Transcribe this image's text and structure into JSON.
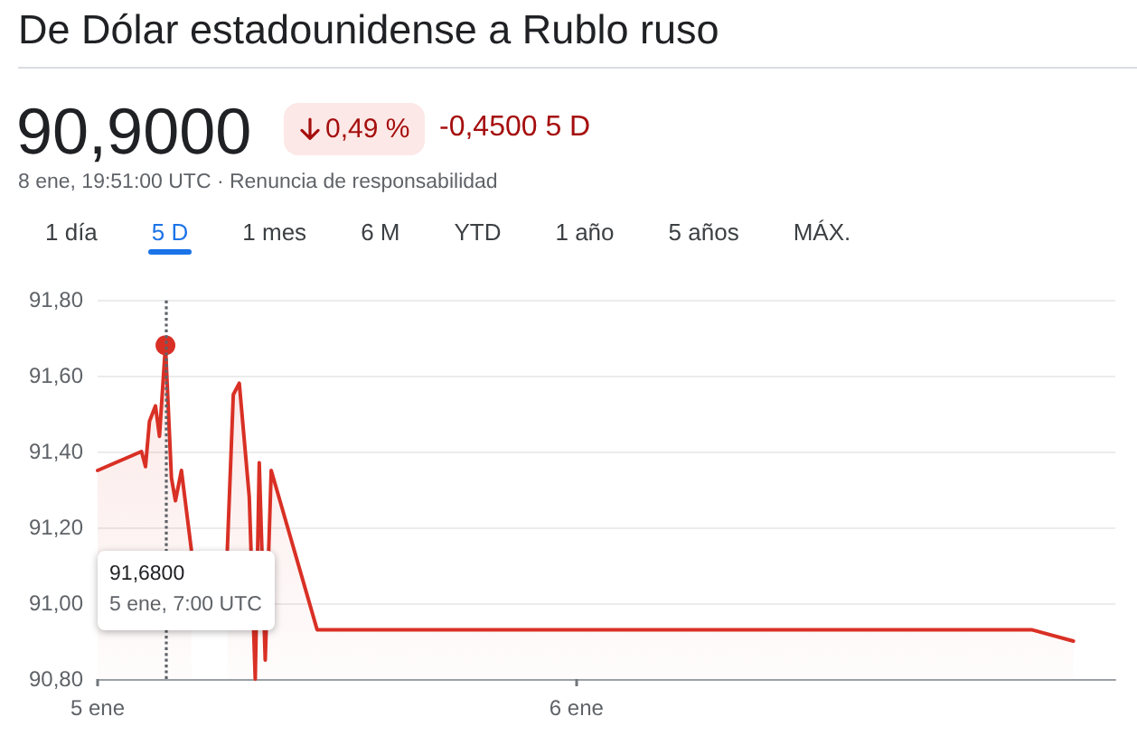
{
  "chart_data": {
    "type": "area",
    "title": "De Dólar estadounidense a Rublo ruso",
    "subtitle": "8 ene, 19:51:00 UTC · Renuncia de responsabilidad",
    "annotations": [
      "90,9000",
      "0,49 %",
      "-0,4500 5 D",
      "1 día",
      "5 D",
      "1 mes",
      "6 M",
      "YTD",
      "1 año",
      "5 años",
      "MÁX.",
      "91,6800\n5 ene, 7:00 UTC"
    ],
    "x": [
      "--01-05T00:00",
      "--01-05T02:12",
      "--01-05T02:24",
      "--01-05T02:36",
      "--01-05T02:54",
      "--01-05T03:06",
      "--01-05T03:24",
      "--01-05T03:42",
      "--01-05T03:54",
      "--01-05T04:12",
      "--01-05T04:42",
      "--01-05T05:36",
      "--01-05T06:30",
      "--01-05T06:48",
      "--01-05T07:06",
      "--01-05T07:36",
      "--01-05T07:54",
      "--01-05T08:06",
      "--01-05T08:24",
      "--01-05T08:42",
      "--01-05T11:00",
      "--01-06T22:48",
      "--01-07T00:54"
    ],
    "series": [
      {
        "color": "#d93025",
        "values": [
          91.35,
          91.4,
          91.36,
          91.48,
          91.52,
          91.44,
          91.68,
          91.33,
          91.27,
          91.35,
          91.14,
          null,
          91.14,
          91.55,
          91.58,
          91.28,
          90.8,
          91.37,
          90.85,
          91.35,
          90.93,
          90.93,
          90.9
        ]
      },
      {
        "type": "scatter",
        "color": "#d93025",
        "marker": "circle",
        "x": [
          "--01-05T03:24"
        ],
        "values": [
          91.68
        ]
      }
    ],
    "xlim": [
      "--01-05T00:00",
      "--01-07T03:00"
    ],
    "xticks": [
      {
        "value": "--01-05",
        "label": "5 ene"
      },
      {
        "value": "--01-06",
        "label": "6 ene"
      }
    ],
    "ylim": [
      90.8,
      91.8
    ],
    "yticks": [
      {
        "value": 90.8,
        "label": "90,80"
      },
      {
        "value": 91.0,
        "label": "91,00"
      },
      {
        "value": 91.2,
        "label": "91,20"
      },
      {
        "value": 91.4,
        "label": "91,40"
      },
      {
        "value": 91.6,
        "label": "91,60"
      },
      {
        "value": 91.8,
        "label": "91,80"
      }
    ],
    "grid": "y",
    "marker": "none",
    "line_style": "solid",
    "ref_lines": [
      {
        "axis": "x",
        "value": "--01-05T03:24",
        "color": "#5f6368",
        "line_style": "dotted"
      }
    ]
  }
}
